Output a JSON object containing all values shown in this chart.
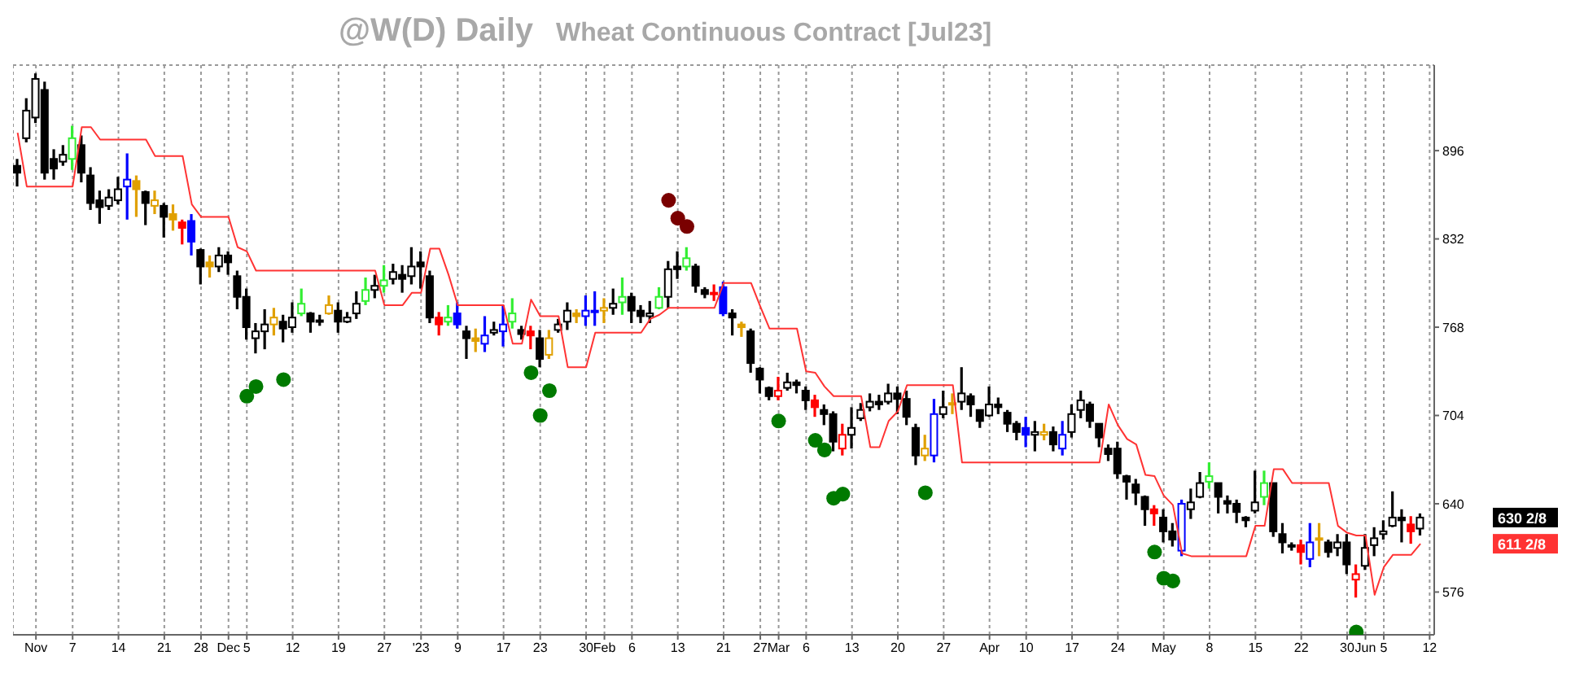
{
  "chart_data": {
    "type": "candlestick",
    "title": "@W(D) Daily",
    "subtitle": "Wheat Continuous Contract [Jul23]",
    "categories": [
      null,
      null,
      "Nov",
      null,
      null,
      null,
      "7",
      null,
      null,
      null,
      null,
      "14",
      null,
      null,
      null,
      null,
      "21",
      null,
      null,
      null,
      "28",
      null,
      null,
      "Dec",
      null,
      "5",
      null,
      null,
      null,
      null,
      "12",
      null,
      null,
      null,
      null,
      "19",
      null,
      null,
      null,
      null,
      "27",
      null,
      null,
      null,
      "'23",
      null,
      null,
      null,
      "9",
      null,
      null,
      null,
      null,
      "17",
      null,
      null,
      null,
      "23",
      null,
      null,
      null,
      null,
      "30",
      null,
      "Feb",
      null,
      null,
      "6",
      null,
      null,
      null,
      null,
      "13",
      null,
      null,
      null,
      null,
      "21",
      null,
      null,
      null,
      "27",
      null,
      "Mar",
      null,
      null,
      "6",
      null,
      null,
      null,
      null,
      "13",
      null,
      null,
      null,
      null,
      "20",
      null,
      null,
      null,
      null,
      "27",
      null,
      null,
      null,
      null,
      "Apr",
      null,
      null,
      null,
      "10",
      null,
      null,
      null,
      null,
      "17",
      null,
      null,
      null,
      null,
      "24",
      null,
      null,
      null,
      null,
      "May",
      null,
      null,
      null,
      null,
      "8",
      null,
      null,
      null,
      null,
      "15",
      null,
      null,
      null,
      null,
      "22",
      null,
      null,
      null,
      null,
      "30",
      null,
      "Jun",
      null,
      "5",
      null,
      null,
      null,
      null,
      "12"
    ],
    "ohlc": [
      [
        885,
        890,
        870,
        880
      ],
      [
        905,
        934,
        902,
        925
      ],
      [
        920,
        952,
        916,
        948
      ],
      [
        940,
        946,
        875,
        880
      ],
      [
        890,
        897,
        875,
        883
      ],
      [
        888,
        900,
        885,
        893
      ],
      [
        890,
        914,
        882,
        905
      ],
      [
        900,
        907,
        873,
        880
      ],
      [
        878,
        884,
        853,
        858
      ],
      [
        860,
        867,
        843,
        855
      ],
      [
        856,
        868,
        853,
        862
      ],
      [
        860,
        877,
        857,
        868
      ],
      [
        870,
        894,
        846,
        875
      ],
      [
        874,
        878,
        848,
        868
      ],
      [
        866,
        867,
        842,
        858
      ],
      [
        856,
        867,
        850,
        860
      ],
      [
        856,
        858,
        833,
        848
      ],
      [
        850,
        857,
        838,
        846
      ],
      [
        844,
        846,
        828,
        840
      ],
      [
        845,
        850,
        820,
        830
      ],
      [
        824,
        825,
        799,
        812
      ],
      [
        815,
        820,
        804,
        812
      ],
      [
        812,
        826,
        808,
        820
      ],
      [
        820,
        823,
        806,
        815
      ],
      [
        805,
        809,
        781,
        790
      ],
      [
        790,
        796,
        759,
        768
      ],
      [
        760,
        771,
        749,
        765
      ],
      [
        765,
        781,
        752,
        770
      ],
      [
        770,
        782,
        762,
        775
      ],
      [
        772,
        777,
        757,
        767
      ],
      [
        768,
        786,
        764,
        775
      ],
      [
        778,
        796,
        776,
        785
      ],
      [
        778,
        779,
        764,
        772
      ],
      [
        772,
        777,
        769,
        773
      ],
      [
        778,
        791,
        777,
        784
      ],
      [
        780,
        786,
        764,
        772
      ],
      [
        772,
        779,
        771,
        775
      ],
      [
        778,
        794,
        774,
        785
      ],
      [
        787,
        804,
        784,
        795
      ],
      [
        795,
        806,
        789,
        798
      ],
      [
        798,
        813,
        793,
        802
      ],
      [
        803,
        814,
        799,
        808
      ],
      [
        806,
        813,
        793,
        803
      ],
      [
        805,
        826,
        799,
        812
      ],
      [
        815,
        823,
        796,
        812
      ],
      [
        805,
        809,
        771,
        775
      ],
      [
        775,
        779,
        762,
        770
      ],
      [
        772,
        784,
        769,
        775
      ],
      [
        778,
        786,
        767,
        770
      ],
      [
        765,
        769,
        745,
        760
      ],
      [
        760,
        767,
        750,
        758
      ],
      [
        756,
        776,
        750,
        762
      ],
      [
        764,
        772,
        762,
        766
      ],
      [
        765,
        784,
        754,
        770
      ],
      [
        772,
        789,
        767,
        778
      ],
      [
        766,
        769,
        759,
        763
      ],
      [
        765,
        769,
        752,
        762
      ],
      [
        760,
        766,
        739,
        745
      ],
      [
        748,
        766,
        745,
        760
      ],
      [
        766,
        774,
        764,
        770
      ],
      [
        772,
        786,
        766,
        780
      ],
      [
        778,
        781,
        771,
        776
      ],
      [
        776,
        791,
        769,
        780
      ],
      [
        780,
        794,
        769,
        780
      ],
      [
        780,
        789,
        771,
        782
      ],
      [
        782,
        796,
        777,
        785
      ],
      [
        786,
        804,
        777,
        790
      ],
      [
        790,
        793,
        771,
        780
      ],
      [
        780,
        784,
        771,
        776
      ],
      [
        776,
        787,
        771,
        778
      ],
      [
        782,
        797,
        781,
        790
      ],
      [
        790,
        816,
        782,
        810
      ],
      [
        812,
        823,
        803,
        810
      ],
      [
        812,
        826,
        809,
        818
      ],
      [
        812,
        814,
        793,
        798
      ],
      [
        795,
        797,
        789,
        792
      ],
      [
        792,
        799,
        787,
        793
      ],
      [
        797,
        801,
        776,
        778
      ],
      [
        778,
        781,
        762,
        775
      ],
      [
        770,
        772,
        761,
        768
      ],
      [
        765,
        767,
        735,
        742
      ],
      [
        738,
        739,
        720,
        730
      ],
      [
        724,
        725,
        715,
        718
      ],
      [
        718,
        732,
        715,
        722
      ],
      [
        724,
        735,
        722,
        728
      ],
      [
        728,
        730,
        720,
        726
      ],
      [
        722,
        725,
        708,
        715
      ],
      [
        715,
        719,
        703,
        710
      ],
      [
        708,
        712,
        697,
        705
      ],
      [
        705,
        707,
        678,
        685
      ],
      [
        680,
        698,
        675,
        690
      ],
      [
        690,
        710,
        680,
        695
      ],
      [
        702,
        713,
        700,
        708
      ],
      [
        710,
        720,
        707,
        714
      ],
      [
        714,
        719,
        708,
        712
      ],
      [
        714,
        727,
        712,
        720
      ],
      [
        720,
        725,
        705,
        716
      ],
      [
        716,
        722,
        697,
        703
      ],
      [
        695,
        698,
        668,
        675
      ],
      [
        675,
        690,
        671,
        680
      ],
      [
        675,
        716,
        670,
        705
      ],
      [
        705,
        722,
        702,
        710
      ],
      [
        712,
        720,
        705,
        713
      ],
      [
        714,
        739,
        708,
        720
      ],
      [
        718,
        720,
        703,
        712
      ],
      [
        708,
        708,
        695,
        700
      ],
      [
        704,
        725,
        703,
        712
      ],
      [
        712,
        717,
        705,
        710
      ],
      [
        706,
        708,
        692,
        698
      ],
      [
        698,
        700,
        686,
        692
      ],
      [
        695,
        703,
        681,
        690
      ],
      [
        690,
        700,
        678,
        692
      ],
      [
        690,
        698,
        686,
        692
      ],
      [
        692,
        696,
        678,
        683
      ],
      [
        680,
        700,
        675,
        690
      ],
      [
        692,
        712,
        688,
        705
      ],
      [
        708,
        722,
        702,
        715
      ],
      [
        712,
        714,
        695,
        700
      ],
      [
        698,
        698,
        681,
        688
      ],
      [
        680,
        683,
        671,
        676
      ],
      [
        680,
        685,
        658,
        662
      ],
      [
        660,
        661,
        643,
        656
      ],
      [
        654,
        658,
        639,
        648
      ],
      [
        645,
        646,
        624,
        636
      ],
      [
        636,
        639,
        624,
        633
      ],
      [
        630,
        636,
        612,
        620
      ],
      [
        620,
        626,
        609,
        614
      ],
      [
        606,
        643,
        602,
        640
      ],
      [
        636,
        651,
        629,
        641
      ],
      [
        645,
        663,
        644,
        655
      ],
      [
        656,
        670,
        651,
        660
      ],
      [
        655,
        655,
        633,
        645
      ],
      [
        642,
        646,
        633,
        640
      ],
      [
        640,
        643,
        626,
        634
      ],
      [
        630,
        631,
        623,
        628
      ],
      [
        635,
        664,
        633,
        641
      ],
      [
        645,
        664,
        639,
        655
      ],
      [
        655,
        655,
        616,
        620
      ],
      [
        618,
        626,
        604,
        612
      ],
      [
        610,
        612,
        606,
        610
      ],
      [
        610,
        614,
        596,
        605
      ],
      [
        600,
        626,
        594,
        612
      ],
      [
        614,
        626,
        602,
        615
      ],
      [
        612,
        614,
        601,
        605
      ],
      [
        608,
        618,
        602,
        612
      ],
      [
        612,
        618,
        589,
        596
      ],
      [
        585,
        596,
        572,
        589
      ],
      [
        595,
        618,
        592,
        608
      ],
      [
        610,
        623,
        602,
        615
      ],
      [
        618,
        628,
        614,
        620
      ],
      [
        624,
        649,
        623,
        630
      ],
      [
        630,
        636,
        612,
        628
      ],
      [
        625,
        631,
        611,
        620
      ],
      [
        622,
        633,
        617,
        630
      ],
      null
    ],
    "colors": [
      "#000000",
      "#000000",
      "#000000",
      "#000000",
      "#000000",
      "#000000",
      "#33ee33",
      "#000000",
      "#000000",
      "#000000",
      "#000000",
      "#000000",
      "#0000ff",
      "#e0a000",
      "#000000",
      "#e0a000",
      "#000000",
      "#e0a000",
      "#ff0000",
      "#0000ff",
      "#000000",
      "#e0a000",
      "#000000",
      "#000000",
      "#000000",
      "#000000",
      "#000000",
      "#000000",
      "#e0a000",
      "#000000",
      "#000000",
      "#33ee33",
      "#000000",
      "#000000",
      "#e0a000",
      "#000000",
      "#000000",
      "#000000",
      "#33ee33",
      "#000000",
      "#33ee33",
      "#000000",
      "#000000",
      "#000000",
      "#000000",
      "#000000",
      "#ff0000",
      "#33ee33",
      "#0000ff",
      "#000000",
      "#e0a000",
      "#0000ff",
      "#000000",
      "#0000ff",
      "#33ee33",
      "#000000",
      "#ff0000",
      "#000000",
      "#e0a000",
      "#000000",
      "#000000",
      "#e0a000",
      "#0000ff",
      "#0000ff",
      "#e0a000",
      "#000000",
      "#33ee33",
      "#000000",
      "#000000",
      "#000000",
      "#33ee33",
      "#000000",
      "#000000",
      "#33ee33",
      "#000000",
      "#000000",
      "#ff0000",
      "#0000ff",
      "#000000",
      "#e0a000",
      "#000000",
      "#000000",
      "#000000",
      "#ff0000",
      "#000000",
      "#000000",
      "#000000",
      "#ff0000",
      "#000000",
      "#000000",
      "#ff0000",
      "#000000",
      "#000000",
      "#000000",
      "#000000",
      "#000000",
      "#000000",
      "#000000",
      "#000000",
      "#e0a000",
      "#0000ff",
      "#000000",
      "#e0a000",
      "#000000",
      "#000000",
      "#000000",
      "#000000",
      "#000000",
      "#000000",
      "#000000",
      "#0000ff",
      "#000000",
      "#e0a000",
      "#000000",
      "#0000ff",
      "#000000",
      "#000000",
      "#000000",
      "#000000",
      "#000000",
      "#000000",
      "#000000",
      "#000000",
      "#000000",
      "#ff0000",
      "#000000",
      "#000000",
      "#0000ff",
      "#000000",
      "#000000",
      "#33ee33",
      "#000000",
      "#000000",
      "#000000",
      "#000000",
      "#000000",
      "#33ee33",
      "#000000",
      "#000000",
      "#000000",
      "#ff0000",
      "#0000ff",
      "#e0a000",
      "#000000",
      "#000000",
      "#000000",
      "#ff0000",
      "#000000",
      "#000000",
      "#000000",
      "#000000",
      "#000000",
      "#ff0000",
      "#000000",
      null
    ],
    "series": [
      {
        "type": "line",
        "color": "#ff3333",
        "values": [
          909,
          870,
          870,
          870,
          870,
          870,
          870,
          913,
          913,
          904,
          904,
          904,
          904,
          904,
          904,
          892,
          892,
          892,
          892,
          857,
          848,
          848,
          848,
          848,
          826,
          823,
          809,
          809,
          809,
          809,
          809,
          809,
          809,
          809,
          809,
          809,
          809,
          809,
          809,
          809,
          784,
          784,
          784,
          793,
          793,
          825,
          825,
          806,
          784,
          784,
          784,
          784,
          784,
          784,
          756,
          756,
          788,
          776,
          776,
          776,
          739,
          739,
          739,
          764,
          764,
          764,
          764,
          764,
          764,
          774,
          777,
          782,
          782,
          782,
          782,
          782,
          782,
          800,
          800,
          800,
          800,
          783,
          767,
          767,
          767,
          767,
          736,
          735,
          725,
          718,
          718,
          718,
          718,
          681,
          681,
          700,
          707,
          726,
          726,
          726,
          726,
          726,
          726,
          670,
          670,
          670,
          670,
          670,
          670,
          670,
          670,
          670,
          670,
          670,
          670,
          670,
          670,
          670,
          670,
          712,
          697,
          687,
          683,
          661,
          660,
          646,
          639,
          604,
          602,
          602,
          602,
          602,
          602,
          602,
          602,
          624,
          624,
          665,
          665,
          655,
          655,
          655,
          655,
          655,
          624,
          619,
          617,
          617,
          574,
          594,
          603,
          603,
          603,
          611,
          null
        ]
      },
      {
        "type": "scatter",
        "color": "#007a00",
        "marker": "circle",
        "values": [
          null,
          null,
          null,
          null,
          null,
          null,
          null,
          null,
          null,
          null,
          null,
          null,
          null,
          null,
          null,
          null,
          null,
          null,
          null,
          null,
          null,
          null,
          null,
          null,
          null,
          718,
          725,
          null,
          null,
          730,
          null,
          null,
          null,
          null,
          null,
          null,
          null,
          null,
          null,
          null,
          null,
          null,
          null,
          null,
          null,
          null,
          null,
          null,
          null,
          null,
          null,
          null,
          null,
          null,
          null,
          null,
          735,
          704,
          722,
          null,
          null,
          null,
          null,
          null,
          null,
          null,
          null,
          null,
          null,
          null,
          null,
          null,
          null,
          null,
          null,
          null,
          null,
          null,
          null,
          null,
          null,
          null,
          null,
          700,
          null,
          null,
          null,
          686,
          679,
          644,
          647,
          null,
          null,
          null,
          null,
          null,
          null,
          null,
          null,
          648,
          null,
          null,
          null,
          null,
          null,
          null,
          null,
          null,
          null,
          null,
          null,
          null,
          null,
          null,
          null,
          null,
          null,
          null,
          null,
          null,
          null,
          null,
          null,
          null,
          605,
          586,
          584,
          null,
          null,
          null,
          null,
          null,
          null,
          null,
          null,
          null,
          null,
          null,
          null,
          null,
          null,
          null,
          null,
          null,
          null,
          null,
          547,
          null,
          null,
          null,
          null,
          null,
          null,
          null,
          null
        ]
      },
      {
        "type": "scatter",
        "color": "#7a0000",
        "marker": "circle",
        "values": [
          null,
          null,
          null,
          null,
          null,
          null,
          null,
          null,
          null,
          null,
          null,
          null,
          null,
          null,
          null,
          null,
          null,
          null,
          null,
          null,
          null,
          null,
          null,
          null,
          null,
          null,
          null,
          null,
          null,
          null,
          null,
          null,
          null,
          null,
          null,
          null,
          null,
          null,
          null,
          null,
          null,
          null,
          null,
          null,
          null,
          null,
          null,
          null,
          null,
          null,
          null,
          null,
          null,
          null,
          null,
          null,
          null,
          null,
          null,
          null,
          null,
          null,
          null,
          null,
          null,
          null,
          null,
          null,
          null,
          null,
          null,
          860,
          847,
          841,
          null,
          null,
          null,
          null,
          null,
          null,
          null,
          null,
          null,
          null,
          null,
          null,
          null,
          null,
          null,
          null,
          null,
          null,
          null,
          null,
          null,
          null,
          null,
          null,
          null,
          null,
          null,
          null,
          null,
          null,
          null,
          null,
          null,
          null,
          null,
          null,
          null,
          null,
          null,
          null,
          null,
          null,
          null,
          null,
          null,
          null,
          null,
          null,
          null,
          null,
          null,
          null,
          null,
          null,
          null,
          null,
          null,
          null,
          null,
          null,
          null,
          null,
          null,
          null,
          null,
          null,
          null,
          null,
          null,
          null,
          null,
          null,
          null,
          null,
          null,
          null,
          null,
          null,
          null,
          null,
          null
        ]
      }
    ],
    "ylim": [
      545,
      958
    ],
    "yticks": [
      576,
      640,
      704,
      768,
      832,
      896
    ],
    "grid": true,
    "annotations": [
      "630 2/8",
      "611 2/8"
    ]
  }
}
